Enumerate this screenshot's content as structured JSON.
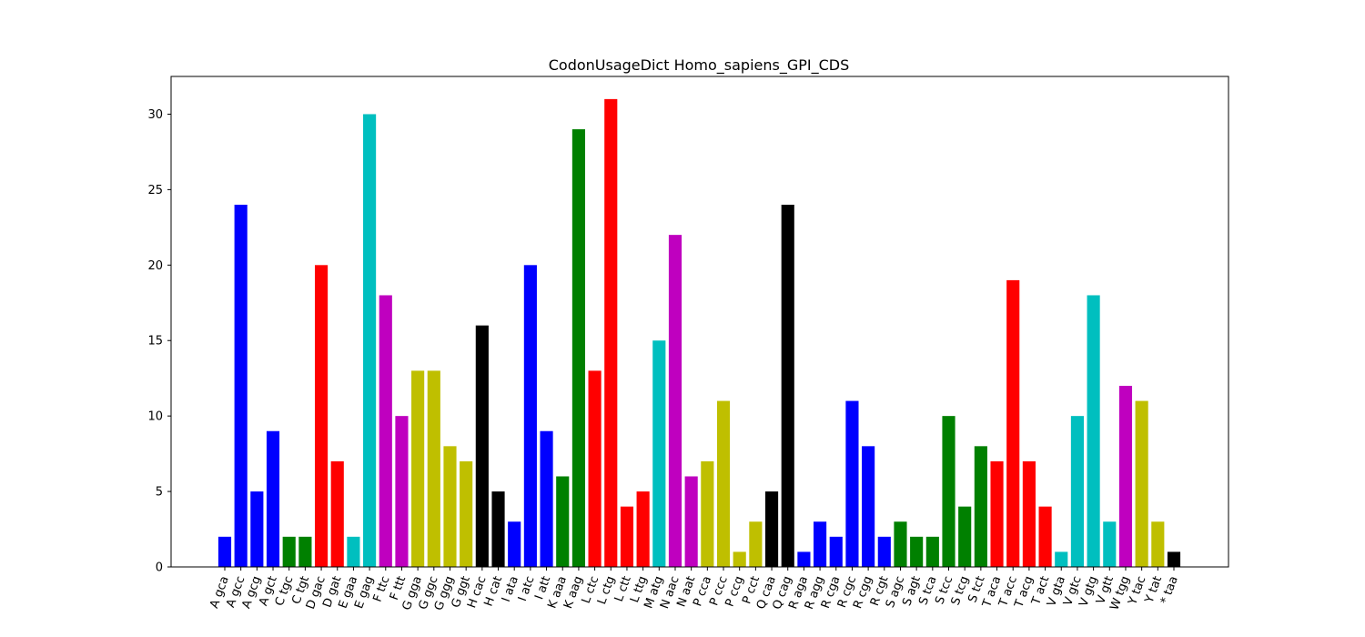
{
  "chart_data": {
    "type": "bar",
    "title": "CodonUsageDict Homo_sapiens_GPI_CDS",
    "xlabel": "",
    "ylabel": "",
    "ylim": [
      0,
      32.5
    ],
    "yticks": [
      0,
      5,
      10,
      15,
      20,
      25,
      30
    ],
    "grid": false,
    "legend": "none",
    "categories": [
      "A gca",
      "A gcc",
      "A gcg",
      "A gct",
      "C tgc",
      "C tgt",
      "D gac",
      "D gat",
      "E gaa",
      "E gag",
      "F ttc",
      "F ttt",
      "G gga",
      "G ggc",
      "G ggg",
      "G ggt",
      "H cac",
      "H cat",
      "I ata",
      "I atc",
      "I att",
      "K aaa",
      "K aag",
      "L ctc",
      "L ctg",
      "L ctt",
      "L ttg",
      "M atg",
      "N aac",
      "N aat",
      "P cca",
      "P ccc",
      "P ccg",
      "P cct",
      "Q caa",
      "Q cag",
      "R aga",
      "R agg",
      "R cga",
      "R cgc",
      "R cgg",
      "R cgt",
      "S agc",
      "S agt",
      "S tca",
      "S tcc",
      "S tcg",
      "S tct",
      "T aca",
      "T acc",
      "T acg",
      "T act",
      "V gta",
      "V gtc",
      "V gtg",
      "V gtt",
      "W tgg",
      "Y tac",
      "Y tat",
      "* taa"
    ],
    "values": [
      2,
      24,
      5,
      9,
      2,
      2,
      20,
      7,
      2,
      30,
      18,
      10,
      13,
      13,
      8,
      7,
      16,
      5,
      3,
      20,
      9,
      6,
      29,
      13,
      31,
      4,
      5,
      15,
      22,
      6,
      7,
      11,
      1,
      3,
      5,
      24,
      1,
      3,
      2,
      11,
      8,
      2,
      3,
      2,
      2,
      10,
      4,
      8,
      7,
      19,
      7,
      4,
      1,
      10,
      18,
      3,
      12,
      11,
      3,
      1
    ],
    "colors": [
      "#0000ff",
      "#0000ff",
      "#0000ff",
      "#0000ff",
      "#008000",
      "#008000",
      "#ff0000",
      "#ff0000",
      "#00bfbf",
      "#00bfbf",
      "#bf00bf",
      "#bf00bf",
      "#bfbf00",
      "#bfbf00",
      "#bfbf00",
      "#bfbf00",
      "#000000",
      "#000000",
      "#0000ff",
      "#0000ff",
      "#0000ff",
      "#008000",
      "#008000",
      "#ff0000",
      "#ff0000",
      "#ff0000",
      "#ff0000",
      "#00bfbf",
      "#bf00bf",
      "#bf00bf",
      "#bfbf00",
      "#bfbf00",
      "#bfbf00",
      "#bfbf00",
      "#000000",
      "#000000",
      "#0000ff",
      "#0000ff",
      "#0000ff",
      "#0000ff",
      "#0000ff",
      "#0000ff",
      "#008000",
      "#008000",
      "#008000",
      "#008000",
      "#008000",
      "#008000",
      "#ff0000",
      "#ff0000",
      "#ff0000",
      "#ff0000",
      "#00bfbf",
      "#00bfbf",
      "#00bfbf",
      "#00bfbf",
      "#bf00bf",
      "#bfbf00",
      "#bfbf00",
      "#000000"
    ]
  }
}
